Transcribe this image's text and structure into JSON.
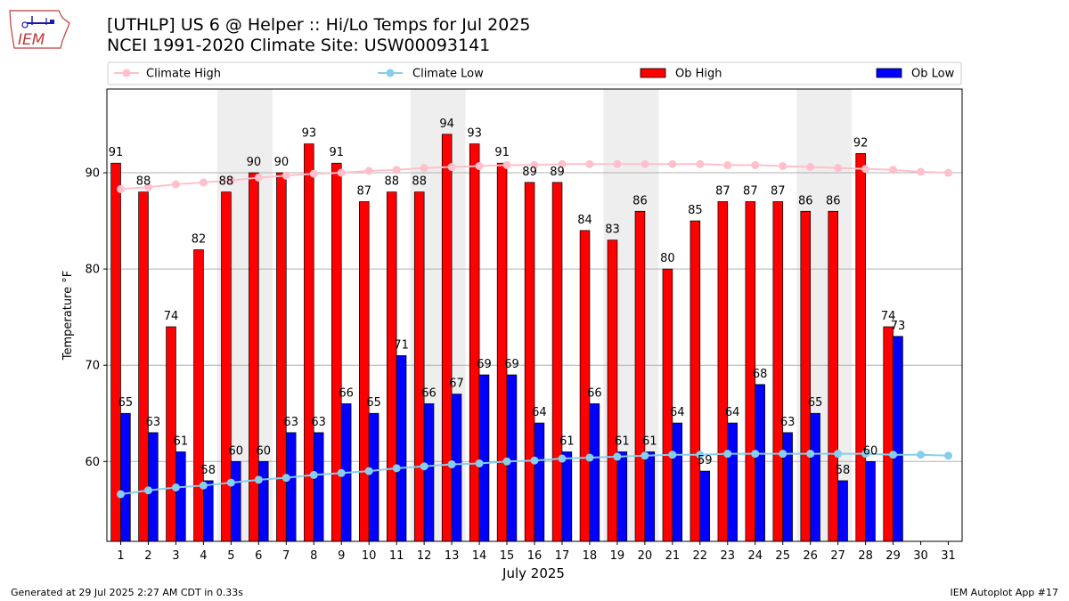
{
  "header": {
    "title_line1": "[UTHLP] US 6 @ Helper  :: Hi/Lo Temps for Jul 2025",
    "title_line2": "NCEI 1991-2020 Climate Site: USW00093141",
    "logo_text": "IEM"
  },
  "footer": {
    "generated": "Generated at 29 Jul 2025 2:27 AM CDT in 0.33s",
    "app": "IEM Autoplot App #17"
  },
  "colors": {
    "climate_high": "#ffc0cb",
    "climate_low": "#87ceeb",
    "ob_high": "#ff0000",
    "ob_low": "#0000ff",
    "weekend_shade": "#eeeeee",
    "grid": "#b0b0b0"
  },
  "chart_data": {
    "type": "bar",
    "xlabel": "July 2025",
    "ylabel": "Temperature °F",
    "ylim": [
      51.7,
      98.7
    ],
    "yticks": [
      60,
      70,
      80,
      90
    ],
    "grid": "horizontal",
    "legend_position": "top",
    "legend": [
      "Climate High",
      "Climate Low",
      "Ob High",
      "Ob Low"
    ],
    "categories": [
      "1",
      "2",
      "3",
      "4",
      "5",
      "6",
      "7",
      "8",
      "9",
      "10",
      "11",
      "12",
      "13",
      "14",
      "15",
      "16",
      "17",
      "18",
      "19",
      "20",
      "21",
      "22",
      "23",
      "24",
      "25",
      "26",
      "27",
      "28",
      "29",
      "30",
      "31"
    ],
    "shaded_weekend_spans": [
      [
        5,
        6
      ],
      [
        12,
        13
      ],
      [
        19,
        20
      ],
      [
        26,
        27
      ]
    ],
    "series": [
      {
        "name": "Ob High",
        "kind": "bar",
        "color": "#ff0000",
        "values": [
          91,
          88,
          74,
          82,
          88,
          90,
          90,
          93,
          91,
          87,
          88,
          88,
          94,
          93,
          91,
          89,
          89,
          84,
          83,
          86,
          80,
          85,
          87,
          87,
          87,
          86,
          86,
          92,
          74,
          null,
          null
        ]
      },
      {
        "name": "Ob Low",
        "kind": "bar",
        "color": "#0000ff",
        "values": [
          65,
          63,
          61,
          58,
          60,
          60,
          63,
          63,
          66,
          65,
          71,
          66,
          67,
          69,
          69,
          64,
          61,
          66,
          61,
          61,
          64,
          59,
          64,
          68,
          63,
          65,
          58,
          60,
          73,
          null,
          null
        ]
      },
      {
        "name": "Climate High",
        "kind": "line",
        "color": "#ffc0cb",
        "values": [
          88.3,
          88.5,
          88.8,
          89.0,
          89.2,
          89.5,
          89.7,
          89.9,
          90.0,
          90.2,
          90.3,
          90.5,
          90.6,
          90.7,
          90.8,
          90.8,
          90.9,
          90.9,
          90.9,
          90.9,
          90.9,
          90.9,
          90.8,
          90.8,
          90.7,
          90.6,
          90.5,
          90.4,
          90.3,
          90.1,
          90.0
        ]
      },
      {
        "name": "Climate Low",
        "kind": "line",
        "color": "#87ceeb",
        "values": [
          56.6,
          57.0,
          57.3,
          57.5,
          57.8,
          58.1,
          58.3,
          58.6,
          58.8,
          59.0,
          59.3,
          59.5,
          59.7,
          59.8,
          60.0,
          60.1,
          60.3,
          60.4,
          60.5,
          60.6,
          60.7,
          60.7,
          60.8,
          60.8,
          60.8,
          60.8,
          60.8,
          60.8,
          60.7,
          60.7,
          60.6
        ]
      }
    ],
    "data_labels": {
      "Ob High": [
        "91",
        "88",
        "74",
        "82",
        "88",
        "90",
        "90",
        "93",
        "91",
        "87",
        "88",
        "88",
        "94",
        "93",
        "91",
        "89",
        "89",
        "84",
        "83",
        "86",
        "80",
        "85",
        "87",
        "87",
        "87",
        "86",
        "86",
        "92",
        "74"
      ],
      "Ob Low": [
        "65",
        "63",
        "61",
        "58",
        "60",
        "60",
        "63",
        "63",
        "66",
        "65",
        "71",
        "66",
        "67",
        "69",
        "69",
        "64",
        "61",
        "66",
        "61",
        "61",
        "64",
        "59",
        "64",
        "68",
        "63",
        "65",
        "58",
        "60",
        "73"
      ]
    }
  }
}
